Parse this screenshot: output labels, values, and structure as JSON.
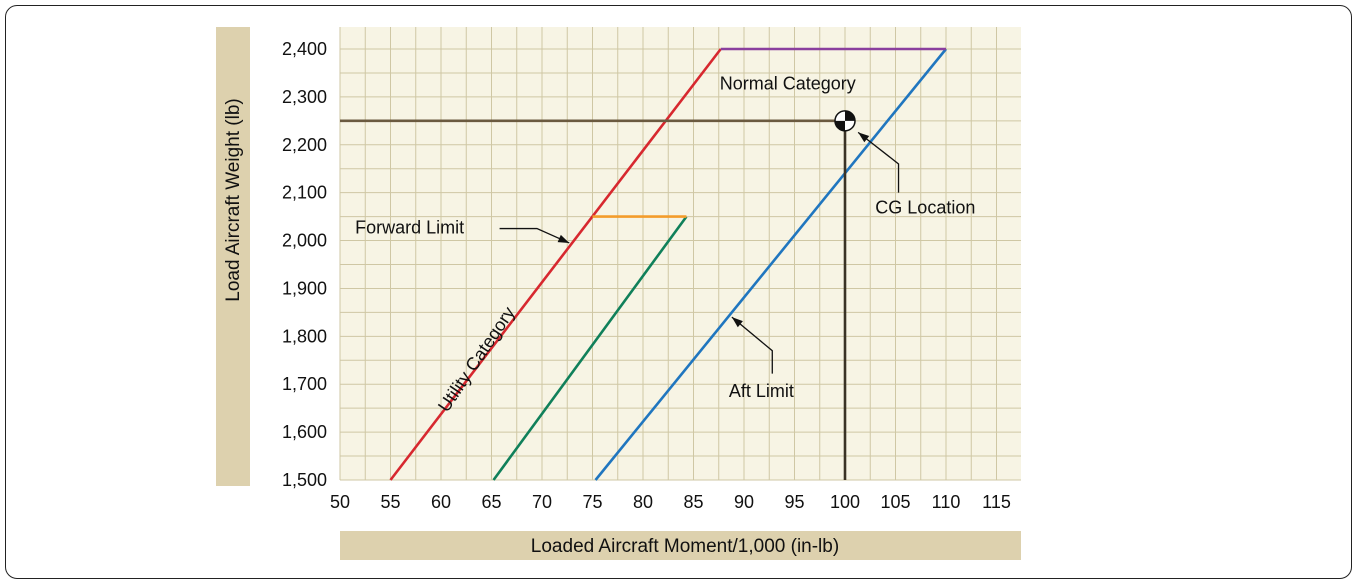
{
  "chart_data": {
    "type": "line",
    "title": "",
    "xlabel": "Loaded Aircraft Moment/1,000 (in-lb)",
    "ylabel": "Load Aircraft Weight (lb)",
    "xlim": [
      50,
      117
    ],
    "ylim": [
      1500,
      2420
    ],
    "x_ticks": [
      50,
      55,
      60,
      65,
      70,
      75,
      80,
      85,
      90,
      95,
      100,
      105,
      110,
      115
    ],
    "x_tick_labels": [
      "50",
      "55",
      "60",
      "65",
      "70",
      "75",
      "80",
      "85",
      "90",
      "95",
      "100",
      "105",
      "110",
      "115"
    ],
    "y_ticks": [
      1500,
      1600,
      1700,
      1800,
      1900,
      2000,
      2100,
      2200,
      2300,
      2400
    ],
    "y_tick_labels": [
      "1,500",
      "1,600",
      "1,700",
      "1,800",
      "1,900",
      "2,000",
      "2,100",
      "2,200",
      "2,300",
      "2,400"
    ],
    "grid": true,
    "background": "#f7f4e4",
    "grid_color": "#cfc7a4",
    "axis_band_color": "#ddd1ae",
    "series": [
      {
        "color": "#d7282f",
        "points": [
          [
            55,
            1500
          ],
          [
            87.7,
            2400
          ]
        ]
      },
      {
        "color": "#2076bf",
        "points": [
          [
            75.3,
            1500
          ],
          [
            110,
            2400
          ]
        ]
      },
      {
        "color": "#10805a",
        "points": [
          [
            65.2,
            1500
          ],
          [
            84.3,
            2050
          ]
        ]
      },
      {
        "color": "#f39c2b",
        "points": [
          [
            75,
            2050
          ],
          [
            84.3,
            2050
          ]
        ]
      },
      {
        "color": "#8a3f9e",
        "points": [
          [
            87.7,
            2400
          ],
          [
            110,
            2400
          ]
        ]
      },
      {
        "color": "#6b5a40",
        "points": [
          [
            50,
            2250
          ],
          [
            100,
            2250
          ]
        ]
      },
      {
        "color": "#3a3225",
        "points": [
          [
            100,
            1500
          ],
          [
            100,
            2250
          ]
        ]
      }
    ],
    "cg_point": {
      "name": "CG Location",
      "x": 100,
      "y": 2250
    },
    "annotations": [
      {
        "text": "Normal Category",
        "anchor": [
          87.6,
          2315
        ],
        "align": "start",
        "color": "#111"
      },
      {
        "text": "CG Location",
        "anchor": [
          103,
          2057
        ],
        "align": "start",
        "color": "#111"
      },
      {
        "text": "Forward Limit",
        "anchor": [
          51.5,
          2015
        ],
        "align": "start",
        "color": "#111"
      },
      {
        "text": "Aft Limit",
        "anchor": [
          88.5,
          1673
        ],
        "align": "start",
        "color": "#111"
      },
      {
        "text": "Utility Category",
        "anchor": [
          64,
          1745
        ],
        "align": "middle",
        "color": "#d7282f",
        "rotate": -56
      }
    ],
    "arrows": [
      {
        "for": "Forward Limit",
        "path": [
          [
            65.8,
            2025
          ],
          [
            69.5,
            2025
          ],
          [
            72.7,
            1995
          ]
        ]
      },
      {
        "for": "CG Location",
        "path": [
          [
            105.3,
            2100
          ],
          [
            105.3,
            2160
          ],
          [
            101.3,
            2226
          ]
        ]
      },
      {
        "for": "Aft Limit",
        "path": [
          [
            92.8,
            1722
          ],
          [
            92.8,
            1770
          ],
          [
            88.8,
            1840
          ]
        ]
      }
    ]
  }
}
